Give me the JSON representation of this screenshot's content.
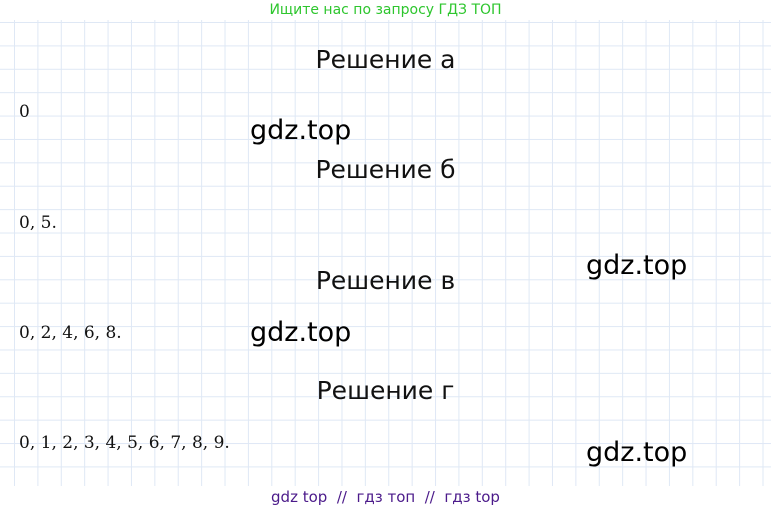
{
  "header": {
    "promo": "Ищите нас по запросу ГДЗ ТОП"
  },
  "solutions": [
    {
      "title": "Решение а",
      "answer": "0"
    },
    {
      "title": "Решение б",
      "answer": "0, 5."
    },
    {
      "title": "Решение в",
      "answer": "0, 2, 4, 6, 8."
    },
    {
      "title": "Решение г",
      "answer": "0, 1, 2, 3, 4, 5, 6, 7, 8, 9."
    }
  ],
  "watermarks": [
    "gdz.top",
    "gdz.top",
    "gdz.top",
    "gdz.top"
  ],
  "footer": {
    "text": "gdz top  //  гдз топ  //  гдз top"
  },
  "colors": {
    "promo": "#2ec62e",
    "footer": "#4b1a8a",
    "grid": "#dfe8f5"
  }
}
